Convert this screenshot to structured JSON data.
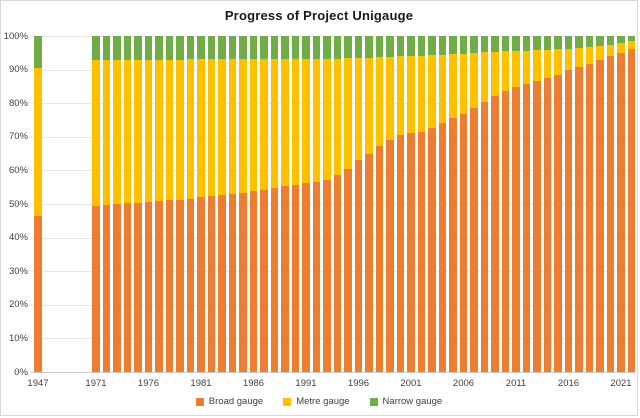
{
  "title": "Progress of Project Unigauge",
  "colors": {
    "broad_gauge": "#ED7D31",
    "metre_gauge": "#FFC000",
    "narrow_gauge": "#70AD47",
    "gridline": "#E7E7E7",
    "axis_line": "#C9C9C9",
    "tick_text": "#404040",
    "title_text": "#1A1A1A"
  },
  "chart_data": {
    "type": "bar",
    "stacked": true,
    "stacking": "percent",
    "title": "Progress of Project Unigauge",
    "xlabel": "",
    "ylabel": "",
    "ylim": [
      0,
      100
    ],
    "grid": true,
    "legend_position": "bottom",
    "y_tick_labels": [
      "0%",
      "10%",
      "20%",
      "30%",
      "40%",
      "50%",
      "60%",
      "70%",
      "80%",
      "90%",
      "100%"
    ],
    "x_tick_labels": [
      "1947",
      "1971",
      "1976",
      "1981",
      "1986",
      "1991",
      "1996",
      "2001",
      "2006",
      "2011",
      "2016",
      "2021"
    ],
    "x": [
      1947,
      1971,
      1972,
      1973,
      1974,
      1975,
      1976,
      1977,
      1978,
      1979,
      1980,
      1981,
      1982,
      1983,
      1984,
      1985,
      1986,
      1987,
      1988,
      1989,
      1990,
      1991,
      1992,
      1993,
      1994,
      1995,
      1996,
      1997,
      1998,
      1999,
      2000,
      2001,
      2002,
      2003,
      2004,
      2005,
      2006,
      2007,
      2008,
      2009,
      2010,
      2011,
      2012,
      2013,
      2014,
      2015,
      2016,
      2017,
      2018,
      2019,
      2020,
      2021,
      2022
    ],
    "series": [
      {
        "name": "Broad gauge",
        "color": "#ED7D31",
        "values": [
          46.4,
          49.4,
          49.8,
          50.0,
          50.2,
          50.4,
          50.6,
          50.9,
          51.1,
          51.3,
          51.6,
          52.0,
          52.3,
          52.6,
          53.1,
          53.4,
          53.9,
          54.3,
          54.8,
          55.3,
          55.8,
          56.1,
          56.5,
          57.2,
          58.6,
          60.3,
          63.0,
          64.8,
          67.3,
          69.0,
          70.4,
          71.0,
          71.5,
          72.5,
          74.0,
          75.5,
          76.7,
          78.5,
          80.3,
          82.0,
          83.5,
          84.8,
          85.6,
          86.5,
          87.4,
          88.5,
          89.8,
          90.8,
          91.8,
          92.8,
          94.0,
          95.0,
          96.0
        ]
      },
      {
        "name": "Metre gauge",
        "color": "#FFC000",
        "values": [
          44.1,
          43.4,
          43.0,
          42.8,
          42.7,
          42.5,
          42.3,
          42.1,
          41.9,
          41.7,
          41.5,
          41.1,
          40.8,
          40.5,
          40.0,
          39.7,
          39.2,
          38.8,
          38.4,
          37.9,
          37.4,
          37.1,
          36.7,
          36.1,
          34.7,
          33.1,
          30.5,
          28.8,
          26.4,
          24.8,
          23.5,
          23.0,
          22.6,
          21.7,
          20.4,
          19.0,
          18.0,
          16.4,
          14.8,
          13.3,
          11.9,
          10.7,
          10.0,
          9.2,
          8.4,
          7.5,
          6.4,
          5.6,
          4.8,
          4.1,
          3.4,
          2.8,
          2.6
        ]
      },
      {
        "name": "Narrow gauge",
        "color": "#70AD47",
        "values": [
          9.5,
          7.2,
          7.2,
          7.2,
          7.1,
          7.1,
          7.1,
          7.0,
          7.0,
          7.0,
          6.9,
          6.9,
          6.9,
          6.9,
          6.9,
          6.9,
          6.9,
          6.9,
          6.8,
          6.8,
          6.8,
          6.8,
          6.8,
          6.7,
          6.7,
          6.6,
          6.5,
          6.4,
          6.3,
          6.2,
          6.1,
          6.0,
          5.9,
          5.8,
          5.6,
          5.5,
          5.3,
          5.1,
          4.9,
          4.7,
          4.6,
          4.5,
          4.4,
          4.3,
          4.2,
          4.0,
          3.8,
          3.6,
          3.4,
          3.1,
          2.6,
          2.2,
          1.4
        ]
      }
    ]
  }
}
